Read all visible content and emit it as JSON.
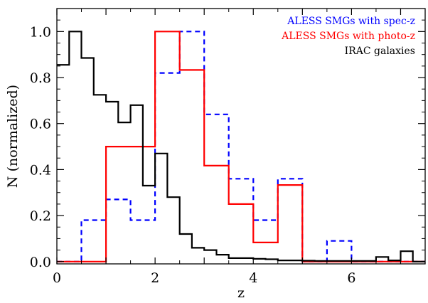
{
  "chart_data": {
    "type": "histogram",
    "title": "",
    "xlabel": "z",
    "ylabel": "N (normalized)",
    "xlim": [
      0,
      7.5
    ],
    "ylim": [
      -0.01,
      1.1
    ],
    "x_ticks": [
      0,
      1,
      2,
      3,
      4,
      5,
      6,
      7
    ],
    "x_tick_labels": [
      "0",
      "",
      "2",
      "",
      "4",
      "",
      "6",
      ""
    ],
    "y_ticks": [
      0.0,
      0.2,
      0.4,
      0.6,
      0.8,
      1.0
    ],
    "y_tick_labels": [
      "0.0",
      "0.2",
      "0.4",
      "0.6",
      "0.8",
      "1.0"
    ],
    "grid": false,
    "legend_position": "top-right",
    "series": [
      {
        "name": "ALESS SMGs with spec-z",
        "color": "#0000ff",
        "style": "dashed",
        "bins": [
          0,
          0.5,
          1.0,
          1.5,
          2.0,
          2.5,
          3.0,
          3.5,
          4.0,
          4.5,
          5.0,
          5.5,
          6.0,
          6.5,
          7.0,
          7.5
        ],
        "values": [
          0.0,
          0.18,
          0.27,
          0.18,
          0.82,
          1.0,
          0.64,
          0.36,
          0.18,
          0.36,
          0.0,
          0.09,
          0.0,
          0.0,
          0.0
        ]
      },
      {
        "name": "ALESS SMGs with photo-z",
        "color": "#ff0000",
        "style": "solid",
        "bins": [
          0,
          0.5,
          1.0,
          1.5,
          2.0,
          2.5,
          3.0,
          3.5,
          4.0,
          4.5,
          5.0,
          5.5,
          6.0,
          6.5,
          7.0,
          7.5
        ],
        "values": [
          0.0,
          0.0,
          0.5,
          0.5,
          1.0,
          0.833,
          0.417,
          0.25,
          0.083,
          0.333,
          0.0,
          0.0,
          0.0,
          0.0,
          0.0
        ]
      },
      {
        "name": "IRAC galaxies",
        "color": "#000000",
        "style": "solid",
        "bins": [
          0,
          0.25,
          0.5,
          0.75,
          1.0,
          1.25,
          1.5,
          1.75,
          2.0,
          2.25,
          2.5,
          2.75,
          3.0,
          3.25,
          3.5,
          3.75,
          4.0,
          4.25,
          4.5,
          4.75,
          5.0,
          5.25,
          5.5,
          5.75,
          6.0,
          6.25,
          6.5,
          6.75,
          7.0,
          7.25,
          7.5
        ],
        "values": [
          0.855,
          1.0,
          0.885,
          0.725,
          0.695,
          0.605,
          0.68,
          0.33,
          0.47,
          0.28,
          0.12,
          0.06,
          0.05,
          0.03,
          0.015,
          0.015,
          0.012,
          0.01,
          0.005,
          0.005,
          0.004,
          0.003,
          0.003,
          0.003,
          0.003,
          0.003,
          0.02,
          0.005,
          0.045,
          0.0
        ]
      }
    ]
  }
}
